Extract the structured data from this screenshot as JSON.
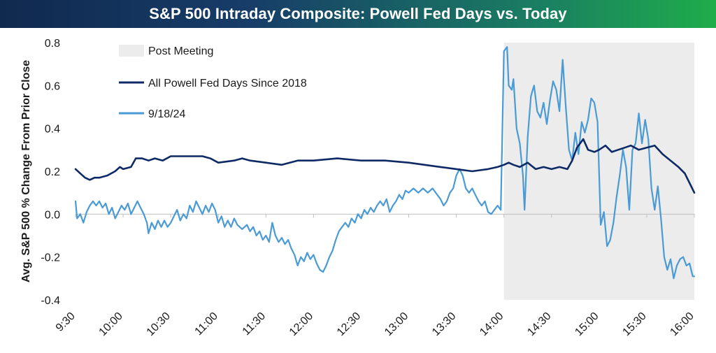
{
  "header": {
    "title": "S&P 500 Intraday Composite: Powell Fed Days vs. Today"
  },
  "colors": {
    "powell": "#0e2a66",
    "today": "#4a9ad6",
    "shade": "#ececec"
  },
  "chart_data": {
    "type": "line",
    "title": "S&P 500 Intraday Composite: Powell Fed Days vs. Today",
    "ylabel": "Avg. S&P 500 % Change From Prior Close",
    "xlabel": "",
    "x_ticks": [
      "9:30",
      "10:00",
      "10:30",
      "11:00",
      "11:30",
      "12:00",
      "12:30",
      "13:00",
      "13:30",
      "14:00",
      "14:30",
      "15:00",
      "15:30",
      "16:00"
    ],
    "ylim": [
      -0.4,
      0.8
    ],
    "y_ticks": [
      "-0.4",
      "-0.2",
      "0.0",
      "0.2",
      "0.4",
      "0.6",
      "0.8"
    ],
    "shaded_region": {
      "label": "Post Meeting",
      "x_start": "14:00",
      "x_end": "16:00"
    },
    "legend_position": "top-left",
    "grid": false,
    "series": [
      {
        "name": "All Powell Fed Days Since 2018",
        "points": [
          [
            "9:30",
            0.21
          ],
          [
            "9:33",
            0.19
          ],
          [
            "9:36",
            0.17
          ],
          [
            "9:39",
            0.16
          ],
          [
            "9:42",
            0.17
          ],
          [
            "9:45",
            0.17
          ],
          [
            "9:50",
            0.18
          ],
          [
            "9:55",
            0.2
          ],
          [
            "9:58",
            0.22
          ],
          [
            "10:00",
            0.21
          ],
          [
            "10:05",
            0.22
          ],
          [
            "10:08",
            0.26
          ],
          [
            "10:12",
            0.26
          ],
          [
            "10:16",
            0.25
          ],
          [
            "10:20",
            0.26
          ],
          [
            "10:25",
            0.25
          ],
          [
            "10:30",
            0.27
          ],
          [
            "10:40",
            0.27
          ],
          [
            "10:50",
            0.27
          ],
          [
            "10:55",
            0.26
          ],
          [
            "11:00",
            0.24
          ],
          [
            "11:10",
            0.25
          ],
          [
            "11:15",
            0.26
          ],
          [
            "11:20",
            0.25
          ],
          [
            "11:30",
            0.24
          ],
          [
            "11:40",
            0.23
          ],
          [
            "11:50",
            0.25
          ],
          [
            "12:00",
            0.25
          ],
          [
            "12:15",
            0.26
          ],
          [
            "12:30",
            0.25
          ],
          [
            "12:45",
            0.25
          ],
          [
            "13:00",
            0.24
          ],
          [
            "13:10",
            0.23
          ],
          [
            "13:20",
            0.22
          ],
          [
            "13:30",
            0.21
          ],
          [
            "13:40",
            0.2
          ],
          [
            "13:50",
            0.21
          ],
          [
            "13:56",
            0.22
          ],
          [
            "14:00",
            0.23
          ],
          [
            "14:03",
            0.24
          ],
          [
            "14:06",
            0.23
          ],
          [
            "14:10",
            0.22
          ],
          [
            "14:15",
            0.24
          ],
          [
            "14:20",
            0.21
          ],
          [
            "14:25",
            0.22
          ],
          [
            "14:30",
            0.21
          ],
          [
            "14:35",
            0.22
          ],
          [
            "14:40",
            0.21
          ],
          [
            "14:43",
            0.25
          ],
          [
            "14:46",
            0.31
          ],
          [
            "14:50",
            0.35
          ],
          [
            "14:53",
            0.3
          ],
          [
            "14:57",
            0.29
          ],
          [
            "15:00",
            0.3
          ],
          [
            "15:04",
            0.32
          ],
          [
            "15:08",
            0.29
          ],
          [
            "15:12",
            0.3
          ],
          [
            "15:16",
            0.31
          ],
          [
            "15:20",
            0.32
          ],
          [
            "15:25",
            0.3
          ],
          [
            "15:30",
            0.31
          ],
          [
            "15:35",
            0.32
          ],
          [
            "15:40",
            0.28
          ],
          [
            "15:45",
            0.25
          ],
          [
            "15:50",
            0.22
          ],
          [
            "15:54",
            0.19
          ],
          [
            "15:58",
            0.13
          ],
          [
            "16:00",
            0.1
          ]
        ]
      },
      {
        "name": "9/18/24",
        "points": [
          [
            "9:30",
            0.06
          ],
          [
            "9:31",
            -0.02
          ],
          [
            "9:33",
            0.0
          ],
          [
            "9:35",
            -0.04
          ],
          [
            "9:37",
            0.01
          ],
          [
            "9:39",
            0.04
          ],
          [
            "9:41",
            0.06
          ],
          [
            "9:43",
            0.04
          ],
          [
            "9:45",
            0.06
          ],
          [
            "9:47",
            0.03
          ],
          [
            "9:49",
            0.05
          ],
          [
            "9:51",
            0.0
          ],
          [
            "9:53",
            0.03
          ],
          [
            "9:55",
            -0.02
          ],
          [
            "9:57",
            0.01
          ],
          [
            "9:59",
            0.04
          ],
          [
            "10:01",
            0.02
          ],
          [
            "10:03",
            0.05
          ],
          [
            "10:05",
            0.0
          ],
          [
            "10:07",
            0.03
          ],
          [
            "10:09",
            0.06
          ],
          [
            "10:11",
            0.03
          ],
          [
            "10:13",
            0.0
          ],
          [
            "10:15",
            -0.04
          ],
          [
            "10:16",
            -0.09
          ],
          [
            "10:18",
            -0.04
          ],
          [
            "10:20",
            -0.07
          ],
          [
            "10:22",
            -0.03
          ],
          [
            "10:24",
            -0.06
          ],
          [
            "10:26",
            -0.03
          ],
          [
            "10:28",
            -0.06
          ],
          [
            "10:30",
            -0.04
          ],
          [
            "10:32",
            -0.01
          ],
          [
            "10:34",
            0.02
          ],
          [
            "10:36",
            -0.03
          ],
          [
            "10:38",
            0.0
          ],
          [
            "10:40",
            -0.02
          ],
          [
            "10:42",
            0.04
          ],
          [
            "10:44",
            0.01
          ],
          [
            "10:46",
            0.06
          ],
          [
            "10:48",
            0.03
          ],
          [
            "10:50",
            0.0
          ],
          [
            "10:52",
            0.04
          ],
          [
            "10:54",
            0.01
          ],
          [
            "10:56",
            0.05
          ],
          [
            "10:58",
            0.02
          ],
          [
            "11:00",
            -0.04
          ],
          [
            "11:02",
            -0.01
          ],
          [
            "11:04",
            -0.06
          ],
          [
            "11:06",
            -0.03
          ],
          [
            "11:08",
            -0.06
          ],
          [
            "11:10",
            -0.02
          ],
          [
            "11:12",
            -0.05
          ],
          [
            "11:15",
            -0.07
          ],
          [
            "11:18",
            -0.05
          ],
          [
            "11:20",
            -0.08
          ],
          [
            "11:22",
            -0.06
          ],
          [
            "11:24",
            -0.1
          ],
          [
            "11:26",
            -0.08
          ],
          [
            "11:28",
            -0.12
          ],
          [
            "11:30",
            -0.1
          ],
          [
            "11:32",
            -0.13
          ],
          [
            "11:34",
            -0.04
          ],
          [
            "11:36",
            -0.1
          ],
          [
            "11:38",
            -0.13
          ],
          [
            "11:40",
            -0.11
          ],
          [
            "11:42",
            -0.14
          ],
          [
            "11:44",
            -0.12
          ],
          [
            "11:46",
            -0.16
          ],
          [
            "11:48",
            -0.19
          ],
          [
            "11:50",
            -0.24
          ],
          [
            "11:52",
            -0.2
          ],
          [
            "11:54",
            -0.22
          ],
          [
            "11:56",
            -0.18
          ],
          [
            "11:58",
            -0.21
          ],
          [
            "12:00",
            -0.19
          ],
          [
            "12:02",
            -0.23
          ],
          [
            "12:04",
            -0.26
          ],
          [
            "12:06",
            -0.27
          ],
          [
            "12:08",
            -0.24
          ],
          [
            "12:10",
            -0.2
          ],
          [
            "12:12",
            -0.17
          ],
          [
            "12:14",
            -0.12
          ],
          [
            "12:16",
            -0.08
          ],
          [
            "12:18",
            -0.06
          ],
          [
            "12:20",
            -0.04
          ],
          [
            "12:22",
            -0.06
          ],
          [
            "12:24",
            -0.02
          ],
          [
            "12:26",
            -0.04
          ],
          [
            "12:28",
            0.0
          ],
          [
            "12:30",
            -0.02
          ],
          [
            "12:32",
            0.02
          ],
          [
            "12:34",
            0.0
          ],
          [
            "12:36",
            0.03
          ],
          [
            "12:38",
            0.01
          ],
          [
            "12:40",
            0.04
          ],
          [
            "12:42",
            0.06
          ],
          [
            "12:44",
            0.04
          ],
          [
            "12:46",
            0.07
          ],
          [
            "12:48",
            0.01
          ],
          [
            "12:50",
            0.04
          ],
          [
            "12:52",
            0.06
          ],
          [
            "12:54",
            0.09
          ],
          [
            "12:56",
            0.07
          ],
          [
            "12:58",
            0.11
          ],
          [
            "13:00",
            0.1
          ],
          [
            "13:03",
            0.12
          ],
          [
            "13:06",
            0.1
          ],
          [
            "13:09",
            0.12
          ],
          [
            "13:12",
            0.1
          ],
          [
            "13:15",
            0.12
          ],
          [
            "13:18",
            0.09
          ],
          [
            "13:20",
            0.07
          ],
          [
            "13:22",
            0.04
          ],
          [
            "13:24",
            0.06
          ],
          [
            "13:26",
            0.1
          ],
          [
            "13:28",
            0.12
          ],
          [
            "13:30",
            0.18
          ],
          [
            "13:32",
            0.21
          ],
          [
            "13:34",
            0.18
          ],
          [
            "13:36",
            0.12
          ],
          [
            "13:38",
            0.1
          ],
          [
            "13:40",
            0.12
          ],
          [
            "13:42",
            0.09
          ],
          [
            "13:44",
            0.06
          ],
          [
            "13:46",
            0.04
          ],
          [
            "13:48",
            0.06
          ],
          [
            "13:50",
            0.01
          ],
          [
            "13:52",
            0.0
          ],
          [
            "13:54",
            0.02
          ],
          [
            "13:56",
            0.04
          ],
          [
            "13:58",
            0.02
          ],
          [
            "14:00",
            0.76
          ],
          [
            "14:02",
            0.78
          ],
          [
            "14:03",
            0.6
          ],
          [
            "14:05",
            0.58
          ],
          [
            "14:06",
            0.63
          ],
          [
            "14:08",
            0.4
          ],
          [
            "14:10",
            0.33
          ],
          [
            "14:12",
            0.18
          ],
          [
            "14:13",
            0.02
          ],
          [
            "14:15",
            0.36
          ],
          [
            "14:17",
            0.55
          ],
          [
            "14:19",
            0.6
          ],
          [
            "14:21",
            0.48
          ],
          [
            "14:23",
            0.45
          ],
          [
            "14:25",
            0.52
          ],
          [
            "14:27",
            0.42
          ],
          [
            "14:29",
            0.53
          ],
          [
            "14:31",
            0.62
          ],
          [
            "14:33",
            0.58
          ],
          [
            "14:35",
            0.48
          ],
          [
            "14:37",
            0.72
          ],
          [
            "14:39",
            0.5
          ],
          [
            "14:41",
            0.3
          ],
          [
            "14:43",
            0.25
          ],
          [
            "14:45",
            0.38
          ],
          [
            "14:47",
            0.28
          ],
          [
            "14:49",
            0.43
          ],
          [
            "14:51",
            0.38
          ],
          [
            "14:53",
            0.44
          ],
          [
            "14:55",
            0.54
          ],
          [
            "14:57",
            0.52
          ],
          [
            "14:59",
            0.43
          ],
          [
            "15:01",
            -0.05
          ],
          [
            "15:03",
            0.01
          ],
          [
            "15:05",
            -0.15
          ],
          [
            "15:07",
            -0.12
          ],
          [
            "15:09",
            -0.04
          ],
          [
            "15:11",
            0.08
          ],
          [
            "15:13",
            0.18
          ],
          [
            "15:15",
            0.3
          ],
          [
            "15:17",
            0.22
          ],
          [
            "15:19",
            0.02
          ],
          [
            "15:21",
            0.3
          ],
          [
            "15:23",
            0.33
          ],
          [
            "15:25",
            0.47
          ],
          [
            "15:27",
            0.33
          ],
          [
            "15:29",
            0.44
          ],
          [
            "15:31",
            0.35
          ],
          [
            "15:33",
            0.12
          ],
          [
            "15:35",
            0.02
          ],
          [
            "15:37",
            0.13
          ],
          [
            "15:39",
            -0.02
          ],
          [
            "15:41",
            -0.2
          ],
          [
            "15:43",
            -0.26
          ],
          [
            "15:45",
            -0.21
          ],
          [
            "15:47",
            -0.3
          ],
          [
            "15:49",
            -0.24
          ],
          [
            "15:51",
            -0.21
          ],
          [
            "15:53",
            -0.2
          ],
          [
            "15:55",
            -0.24
          ],
          [
            "15:57",
            -0.23
          ],
          [
            "15:59",
            -0.29
          ],
          [
            "16:00",
            -0.29
          ]
        ]
      }
    ]
  }
}
